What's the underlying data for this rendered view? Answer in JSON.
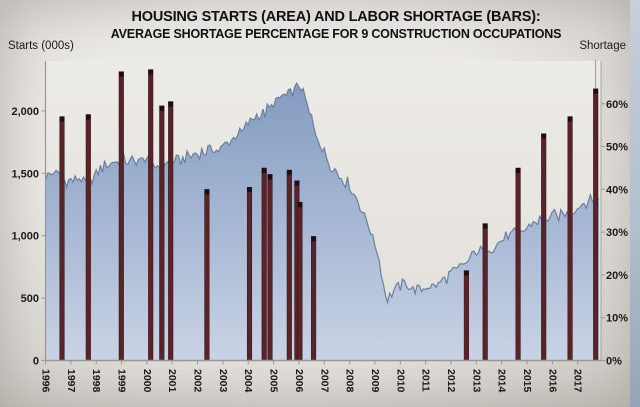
{
  "header": {
    "title": "HOUSING STARTS (AREA) AND LABOR SHORTAGE (BARS):",
    "subtitle": "AVERAGE SHORTAGE PERCENTAGE FOR 9 CONSTRUCTION OCCUPATIONS"
  },
  "axes": {
    "left_title": "Starts  (000s)",
    "right_title": "Shortage"
  },
  "colors": {
    "bar": "#5a2328",
    "bar_cap": "#200d10",
    "bar_stroke": "#321418",
    "area_top": "#7e97bd",
    "area_mid": "#a7b8d4",
    "area_bottom": "#c9d3e5",
    "area_line": "#68809f",
    "axis_line": "#9a9792",
    "plot_bg_top": "#edebe7",
    "plot_bg_bottom": "#e2dfda",
    "text": "#1b1b1b",
    "hairline": "#8f8d89"
  },
  "chart_data": {
    "type": "combo",
    "title": "HOUSING STARTS (AREA) AND LABOR SHORTAGE (BARS): AVERAGE SHORTAGE PERCENTAGE FOR 9 CONSTRUCTION OCCUPATIONS",
    "grid": false,
    "legend": "none",
    "left_axis": {
      "label": "Starts (000s)",
      "tick_labels": [
        "0",
        "500",
        "1,000",
        "1,500",
        "2,000"
      ],
      "tick_values": [
        0,
        500,
        1000,
        1500,
        2000
      ],
      "ylim": [
        0,
        2400
      ]
    },
    "right_axis": {
      "label": "Shortage",
      "tick_labels": [
        "0%",
        "10%",
        "20%",
        "30%",
        "40%",
        "50%",
        "60%"
      ],
      "tick_values": [
        0,
        10,
        20,
        30,
        40,
        50,
        60
      ],
      "ylim": [
        0,
        70
      ]
    },
    "x_axis": {
      "tick_labels": [
        "1996",
        "1997",
        "1998",
        "1999",
        "2000",
        "2001",
        "2002",
        "2003",
        "2004",
        "2005",
        "2006",
        "2007",
        "2008",
        "2009",
        "2010",
        "2011",
        "2012",
        "2013",
        "2014",
        "2015",
        "2016",
        "2017"
      ],
      "xlim": [
        1996,
        2017.92
      ],
      "label_rotation_deg": 90
    },
    "series": [
      {
        "name": "Housing starts (area, 000s)",
        "type": "area",
        "axis": "left",
        "points": [
          [
            1996.0,
            1480
          ],
          [
            1996.4,
            1510
          ],
          [
            1996.8,
            1440
          ],
          [
            1997.2,
            1460
          ],
          [
            1997.7,
            1430
          ],
          [
            1998.1,
            1530
          ],
          [
            1998.6,
            1590
          ],
          [
            1999.0,
            1610
          ],
          [
            1999.5,
            1590
          ],
          [
            2000.0,
            1620
          ],
          [
            2000.4,
            1560
          ],
          [
            2000.9,
            1590
          ],
          [
            2001.4,
            1610
          ],
          [
            2001.9,
            1650
          ],
          [
            2002.4,
            1680
          ],
          [
            2002.9,
            1700
          ],
          [
            2003.3,
            1760
          ],
          [
            2003.8,
            1850
          ],
          [
            2004.2,
            1950
          ],
          [
            2004.6,
            1970
          ],
          [
            2005.0,
            2060
          ],
          [
            2005.4,
            2120
          ],
          [
            2005.8,
            2150
          ],
          [
            2006.05,
            2230
          ],
          [
            2006.3,
            2060
          ],
          [
            2006.6,
            1870
          ],
          [
            2006.9,
            1700
          ],
          [
            2007.2,
            1580
          ],
          [
            2007.6,
            1480
          ],
          [
            2008.0,
            1400
          ],
          [
            2008.4,
            1250
          ],
          [
            2008.8,
            1050
          ],
          [
            2009.1,
            860
          ],
          [
            2009.45,
            500
          ],
          [
            2009.8,
            580
          ],
          [
            2010.2,
            620
          ],
          [
            2010.5,
            560
          ],
          [
            2011.0,
            590
          ],
          [
            2011.5,
            600
          ],
          [
            2012.0,
            700
          ],
          [
            2012.5,
            760
          ],
          [
            2013.0,
            870
          ],
          [
            2013.4,
            900
          ],
          [
            2013.9,
            940
          ],
          [
            2014.3,
            1000
          ],
          [
            2014.8,
            1030
          ],
          [
            2015.2,
            1100
          ],
          [
            2015.7,
            1140
          ],
          [
            2016.1,
            1160
          ],
          [
            2016.5,
            1170
          ],
          [
            2017.0,
            1230
          ],
          [
            2017.4,
            1270
          ],
          [
            2017.83,
            1300
          ]
        ],
        "note": "monthly jagged series, values read from chart as anchor points"
      },
      {
        "name": "Average shortage percentage (bars)",
        "type": "bar",
        "axis": "right",
        "points": [
          [
            1996.65,
            57
          ],
          [
            1997.69,
            57.5
          ],
          [
            1998.99,
            67.5
          ],
          [
            2000.15,
            68
          ],
          [
            2000.59,
            59.5
          ],
          [
            2000.94,
            60.5
          ],
          [
            2002.37,
            40
          ],
          [
            2004.05,
            40.5
          ],
          [
            2004.63,
            45
          ],
          [
            2004.86,
            43.5
          ],
          [
            2005.62,
            44.5
          ],
          [
            2005.92,
            42
          ],
          [
            2006.04,
            37
          ],
          [
            2006.58,
            29
          ],
          [
            2012.61,
            21
          ],
          [
            2013.35,
            32
          ],
          [
            2014.65,
            45
          ],
          [
            2015.66,
            53
          ],
          [
            2016.7,
            57
          ],
          [
            2017.71,
            63.5
          ]
        ]
      }
    ],
    "hairline_above_last_bar": true
  }
}
